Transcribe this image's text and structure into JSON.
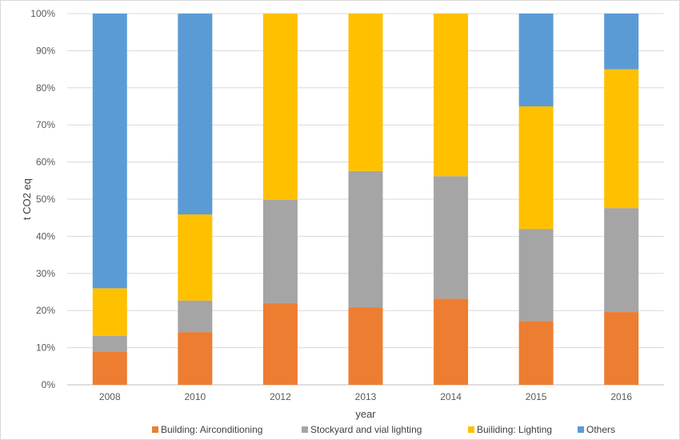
{
  "chart_data": {
    "type": "bar",
    "stacked": true,
    "percent": true,
    "categories": [
      "2008",
      "2010",
      "2012",
      "2013",
      "2014",
      "2015",
      "2016"
    ],
    "series": [
      {
        "name": "Building: Airconditioning",
        "color": "#ED7D31",
        "values": [
          9,
          14.2,
          22,
          20.8,
          23.2,
          17.2,
          19.6
        ]
      },
      {
        "name": "Stockyard and vial lighting",
        "color": "#A5A5A5",
        "values": [
          4.2,
          8.5,
          27.8,
          36.8,
          33,
          24.8,
          28
        ]
      },
      {
        "name": "Builiding: Lighting",
        "color": "#FFC000",
        "values": [
          12.8,
          23.2,
          50.2,
          42.4,
          43.8,
          33,
          37.4
        ]
      },
      {
        "name": "Others",
        "color": "#5B9BD5",
        "values": [
          74,
          54.1,
          0,
          0,
          0,
          25,
          15
        ]
      }
    ],
    "ylim": [
      0,
      100
    ],
    "yticks": [
      "0%",
      "10%",
      "20%",
      "30%",
      "40%",
      "50%",
      "60%",
      "70%",
      "80%",
      "90%",
      "100%"
    ],
    "xlabel": "year",
    "ylabel": "t CO2 eq",
    "grid": true,
    "legend_position": "bottom"
  }
}
